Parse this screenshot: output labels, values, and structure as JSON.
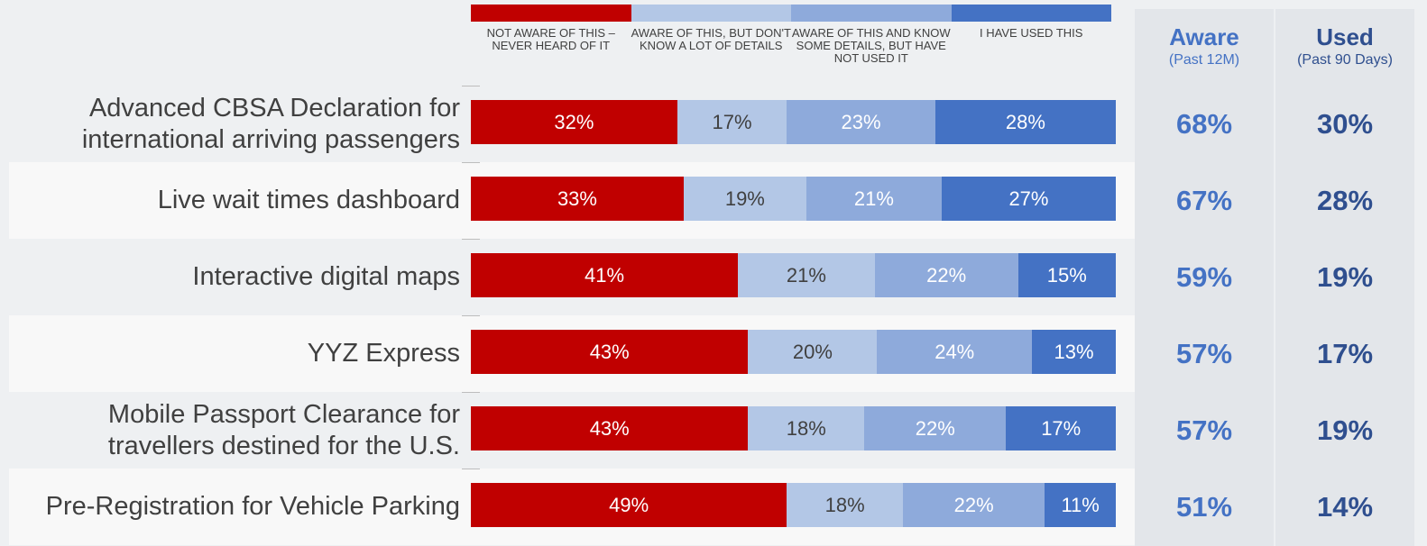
{
  "chart_data": {
    "type": "bar",
    "orientation": "horizontal",
    "stacked": true,
    "categories": [
      "Advanced CBSA Declaration for international arriving passengers",
      "Live wait times dashboard",
      "Interactive digital maps",
      "YYZ Express",
      "Mobile Passport Clearance for travellers destined for the U.S.",
      "Pre-Registration for Vehicle Parking"
    ],
    "series": [
      {
        "name": "NOT AWARE OF THIS – NEVER HEARD OF IT",
        "color": "#c00000",
        "text_color": "#ffffff",
        "values": [
          32,
          33,
          41,
          43,
          43,
          49
        ]
      },
      {
        "name": "AWARE OF THIS, BUT DON'T KNOW A LOT OF DETAILS",
        "color": "#b3c7e6",
        "text_color": "#404040",
        "values": [
          17,
          19,
          21,
          20,
          18,
          18
        ]
      },
      {
        "name": "AWARE OF THIS AND KNOW SOME DETAILS, BUT HAVE NOT USED IT",
        "color": "#8eaadb",
        "text_color": "#ffffff",
        "values": [
          23,
          21,
          22,
          24,
          22,
          22
        ]
      },
      {
        "name": "I HAVE USED THIS",
        "color": "#4472c4",
        "text_color": "#ffffff",
        "values": [
          28,
          27,
          15,
          13,
          17,
          11
        ]
      }
    ],
    "value_suffix": "%",
    "xlim": [
      0,
      100
    ],
    "legend_position": "top",
    "summary_columns": [
      {
        "title": "Aware",
        "subtitle": "(Past 12M)",
        "color": "#4472c4",
        "values": [
          "68%",
          "67%",
          "59%",
          "57%",
          "57%",
          "51%"
        ]
      },
      {
        "title": "Used",
        "subtitle": "(Past 90 Days)",
        "color": "#2f4f8f",
        "values": [
          "30%",
          "28%",
          "19%",
          "17%",
          "19%",
          "14%"
        ]
      }
    ]
  }
}
